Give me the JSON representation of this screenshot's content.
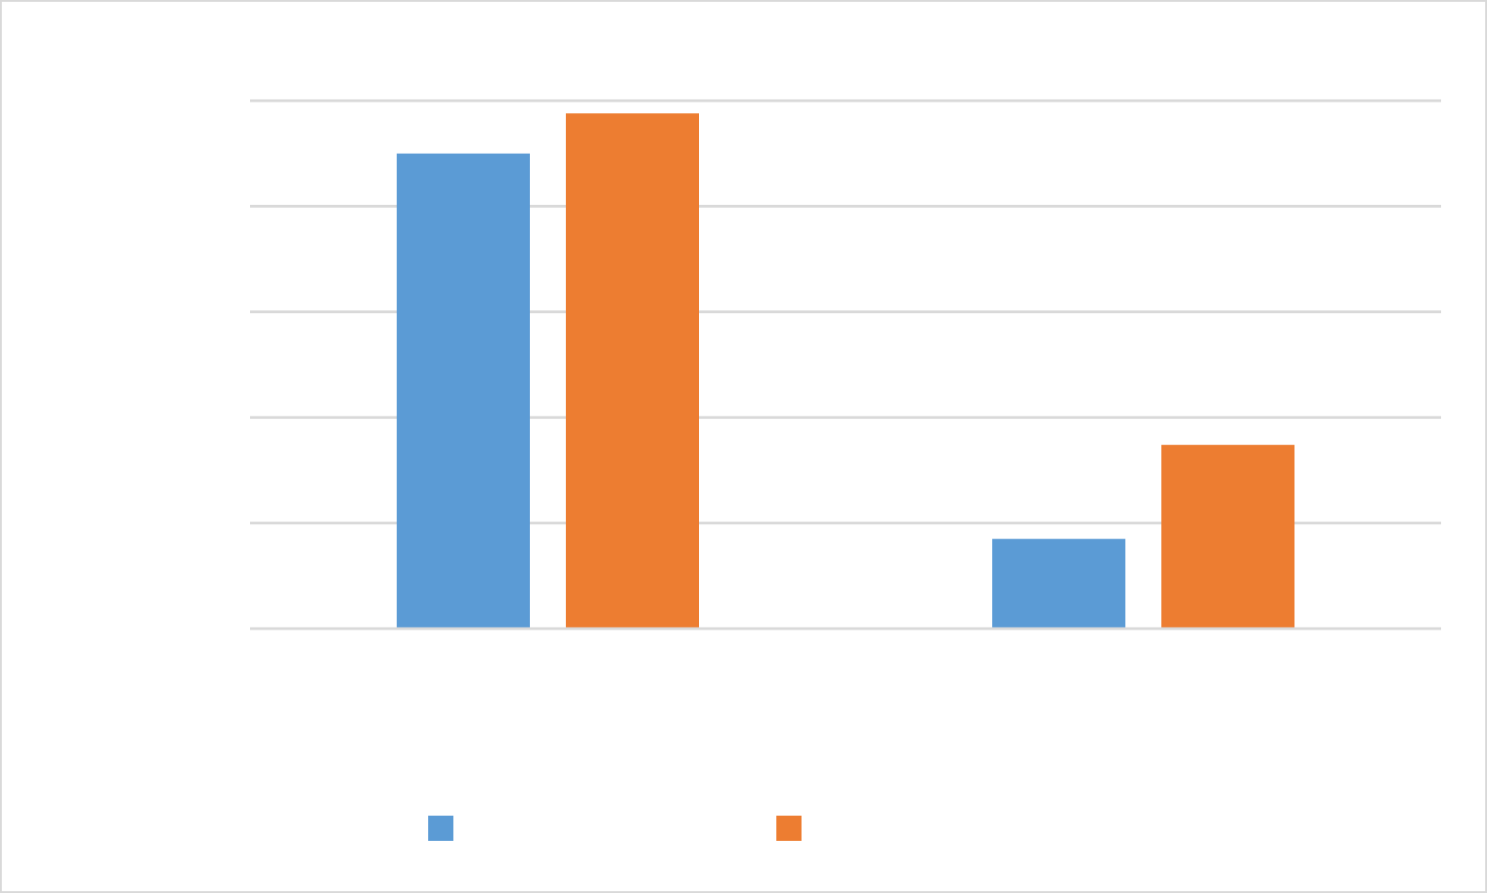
{
  "colors": {
    "series_1": "#5b9bd5",
    "series_2": "#ed7d31",
    "gridline": "#d9d9d9",
    "frame_border": "#d9d9d9",
    "background": "#ffffff"
  },
  "chart_data": {
    "type": "bar",
    "categories": [
      "",
      ""
    ],
    "series": [
      {
        "color": "#5b9bd5",
        "values": [
          4.5,
          0.85
        ]
      },
      {
        "color": "#ed7d31",
        "values": [
          4.88,
          1.74
        ]
      }
    ],
    "ylim": [
      0,
      5
    ],
    "yticks": [
      0,
      1,
      2,
      3,
      4,
      5
    ],
    "grid": true,
    "legend": "bottom"
  }
}
